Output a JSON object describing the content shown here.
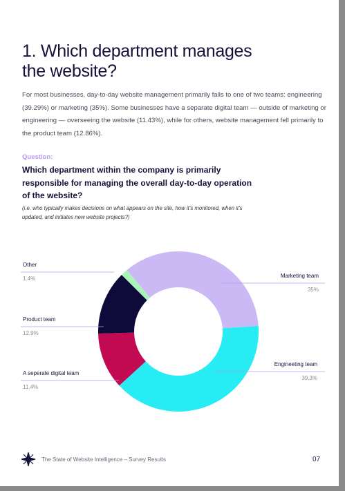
{
  "heading": [
    "1. Which department manages",
    "the website?"
  ],
  "intro": "For most businesses, day-to-day website management primarily falls to one of two teams: engineering (39.29%) or marketing (35%). Some businesses have a separate digital team — outside of marketing or engineering — overseeing the website (11.43%), while for others, website management fell primarily to the product team (12.86%).",
  "question_label": "Question:",
  "question": "Which department within the company is primarily responsible for managing the overall day-to-day operation of the website?",
  "question_note": "(i.e. who typically makes decisions on what appears on the site, how it's monitored, when it's updated, and initiates new website projects?)",
  "chart_data": {
    "type": "donut",
    "categories": [
      "Marketing team",
      "Engineeting team",
      "A seperate digital team",
      "Product team",
      "Other"
    ],
    "values": [
      35,
      39.3,
      11.4,
      12.9,
      1.4
    ],
    "value_labels": [
      "35%",
      "39.3%",
      "11.4%",
      "12.9%",
      "1.4%"
    ],
    "colors": [
      "#cbb9f6",
      "#27ecf4",
      "#c20a52",
      "#0e0b3b",
      "#a9f5b9"
    ]
  },
  "footer": {
    "text": "The State of Website Intelligence – Survey Results",
    "page": "07"
  }
}
